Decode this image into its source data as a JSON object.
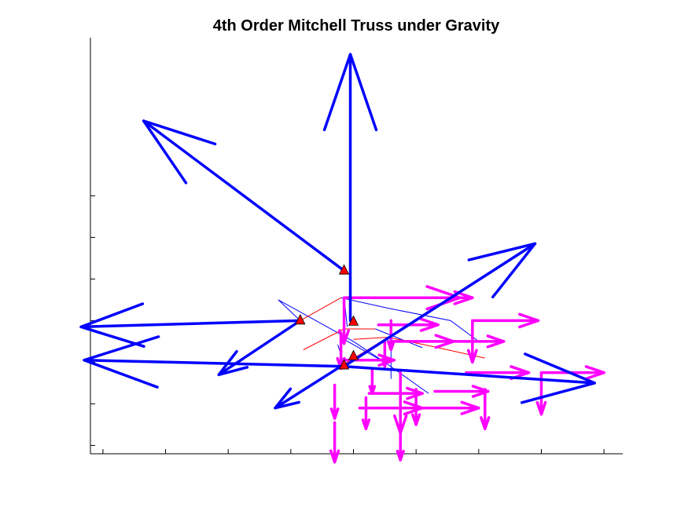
{
  "chart_data": {
    "type": "quiver",
    "title": "4th Order Mitchell Truss under Gravity",
    "xlabel": "",
    "ylabel": "",
    "xlim": [
      -4.2,
      4.3
    ],
    "ylim": [
      -3.2,
      6.8
    ],
    "xticks": [
      -4,
      -3,
      -2,
      -1,
      0,
      1,
      2,
      3,
      4
    ],
    "yticks": [
      -3,
      -2,
      -1,
      0,
      1,
      2,
      3
    ],
    "tick_labels_shown": false,
    "grid": false,
    "colors": {
      "tension_member": "#ff0000",
      "compression_member": "#0000ff",
      "load_arrow": "#ff00ff",
      "reaction_arrow": "#0000ff",
      "support_fill": "#ff0000"
    },
    "supports": [
      {
        "x": -0.85,
        "y": 0.03
      },
      {
        "x": -0.15,
        "y": -1.05
      },
      {
        "x": -0.15,
        "y": 1.23
      },
      {
        "x": 0.0,
        "y": 0.0
      },
      {
        "x": 0.0,
        "y": -0.83
      }
    ],
    "members": [
      {
        "kind": "compression",
        "pts": [
          [
            -1.2,
            0.5
          ],
          [
            -0.85,
            0.0
          ]
        ]
      },
      {
        "kind": "compression",
        "pts": [
          [
            -1.2,
            0.5
          ],
          [
            0.0,
            -0.5
          ],
          [
            0.5,
            -1.0
          ],
          [
            1.2,
            -1.75
          ]
        ]
      },
      {
        "kind": "compression",
        "pts": [
          [
            -0.2,
            0.55
          ],
          [
            0.55,
            0.3
          ],
          [
            1.55,
            0.0
          ],
          [
            2.0,
            -0.5
          ]
        ]
      },
      {
        "kind": "compression",
        "pts": [
          [
            -0.15,
            0.55
          ],
          [
            -0.1,
            -0.15
          ]
        ]
      },
      {
        "kind": "compression",
        "pts": [
          [
            0.35,
            -0.2
          ],
          [
            1.1,
            -0.65
          ]
        ]
      },
      {
        "kind": "compression",
        "pts": [
          [
            -0.15,
            -0.45
          ],
          [
            0.5,
            -1.0
          ]
        ]
      },
      {
        "kind": "compression",
        "pts": [
          [
            0.6,
            0.0
          ],
          [
            0.6,
            -1.4
          ]
        ]
      },
      {
        "kind": "compression",
        "pts": [
          [
            -0.15,
            -1.05
          ],
          [
            -0.25,
            -0.58
          ]
        ]
      },
      {
        "kind": "tension",
        "pts": [
          [
            -0.85,
            0.0
          ],
          [
            -0.2,
            0.55
          ]
        ]
      },
      {
        "kind": "tension",
        "pts": [
          [
            -0.8,
            -0.7
          ],
          [
            -0.15,
            -0.2
          ],
          [
            0.35,
            -0.2
          ]
        ]
      },
      {
        "kind": "tension",
        "pts": [
          [
            -0.15,
            -1.05
          ],
          [
            0.55,
            -0.4
          ],
          [
            1.2,
            -0.6
          ],
          [
            2.1,
            -0.9
          ]
        ]
      },
      {
        "kind": "tension",
        "pts": [
          [
            0.0,
            -0.45
          ],
          [
            0.55,
            -0.4
          ]
        ]
      }
    ],
    "loads": [
      {
        "x": -0.15,
        "y": 0.55,
        "u": 1.85,
        "v": 0
      },
      {
        "x": -0.15,
        "y": 0.55,
        "u": 0,
        "v": -1.1
      },
      {
        "x": 0.9,
        "y": 0.55,
        "u": 1.0,
        "v": 0
      },
      {
        "x": 0.6,
        "y": 0.0,
        "u": 0,
        "v": -0.7
      },
      {
        "x": 0.4,
        "y": -0.1,
        "u": 0.95,
        "v": 0
      },
      {
        "x": 1.9,
        "y": 0.0,
        "u": 1.05,
        "v": 0
      },
      {
        "x": 1.9,
        "y": 0.0,
        "u": 0,
        "v": -1.0
      },
      {
        "x": -0.2,
        "y": -0.3,
        "u": 0,
        "v": -0.85
      },
      {
        "x": 0.6,
        "y": -0.5,
        "u": 1.0,
        "v": 0
      },
      {
        "x": 1.5,
        "y": -0.5,
        "u": 0.9,
        "v": 0
      },
      {
        "x": 0.5,
        "y": -0.5,
        "u": 0,
        "v": -0.6
      },
      {
        "x": -0.2,
        "y": -0.95,
        "u": 0.85,
        "v": 0
      },
      {
        "x": 0.3,
        "y": -1.15,
        "u": 0,
        "v": -0.6
      },
      {
        "x": 1.8,
        "y": -1.25,
        "u": 1.0,
        "v": 0
      },
      {
        "x": 3.0,
        "y": -1.25,
        "u": 1.0,
        "v": 0
      },
      {
        "x": 3.0,
        "y": -1.25,
        "u": 0,
        "v": -1.0
      },
      {
        "x": 0.25,
        "y": -1.75,
        "u": 0.85,
        "v": 0
      },
      {
        "x": 1.3,
        "y": -1.7,
        "u": 0.85,
        "v": 0
      },
      {
        "x": 0.2,
        "y": -1.85,
        "u": 0,
        "v": -0.75
      },
      {
        "x": -0.3,
        "y": -1.55,
        "u": 0,
        "v": -0.8
      },
      {
        "x": 1.0,
        "y": -1.65,
        "u": 0,
        "v": -0.85
      },
      {
        "x": 2.1,
        "y": -1.65,
        "u": 0,
        "v": -0.95
      },
      {
        "x": 0.75,
        "y": -1.25,
        "u": 0,
        "v": -1.45
      },
      {
        "x": -0.3,
        "y": -2.45,
        "u": 0,
        "v": -0.95
      },
      {
        "x": 0.75,
        "y": -2.6,
        "u": 0,
        "v": -0.75
      },
      {
        "x": 0.1,
        "y": -2.1,
        "u": 1.0,
        "v": 0
      },
      {
        "x": 1.05,
        "y": -2.1,
        "u": 0.95,
        "v": 0
      }
    ],
    "reactions": [
      {
        "x": -0.85,
        "y": 0.0,
        "u": -3.5,
        "v": -0.15
      },
      {
        "x": -0.15,
        "y": -1.1,
        "u": -4.15,
        "v": 0.15
      },
      {
        "x": -0.15,
        "y": 1.2,
        "u": -3.2,
        "v": 3.6
      },
      {
        "x": -0.05,
        "y": 0.0,
        "u": 0,
        "v": 6.4
      },
      {
        "x": -0.15,
        "y": -1.1,
        "u": 3.05,
        "v": 2.95
      },
      {
        "x": -0.15,
        "y": -1.05,
        "u": -1.1,
        "v": -1.05
      },
      {
        "x": -0.85,
        "y": 0.0,
        "u": -1.3,
        "v": -1.3
      },
      {
        "x": -0.15,
        "y": -1.1,
        "u": 4.0,
        "v": -0.4
      }
    ]
  }
}
